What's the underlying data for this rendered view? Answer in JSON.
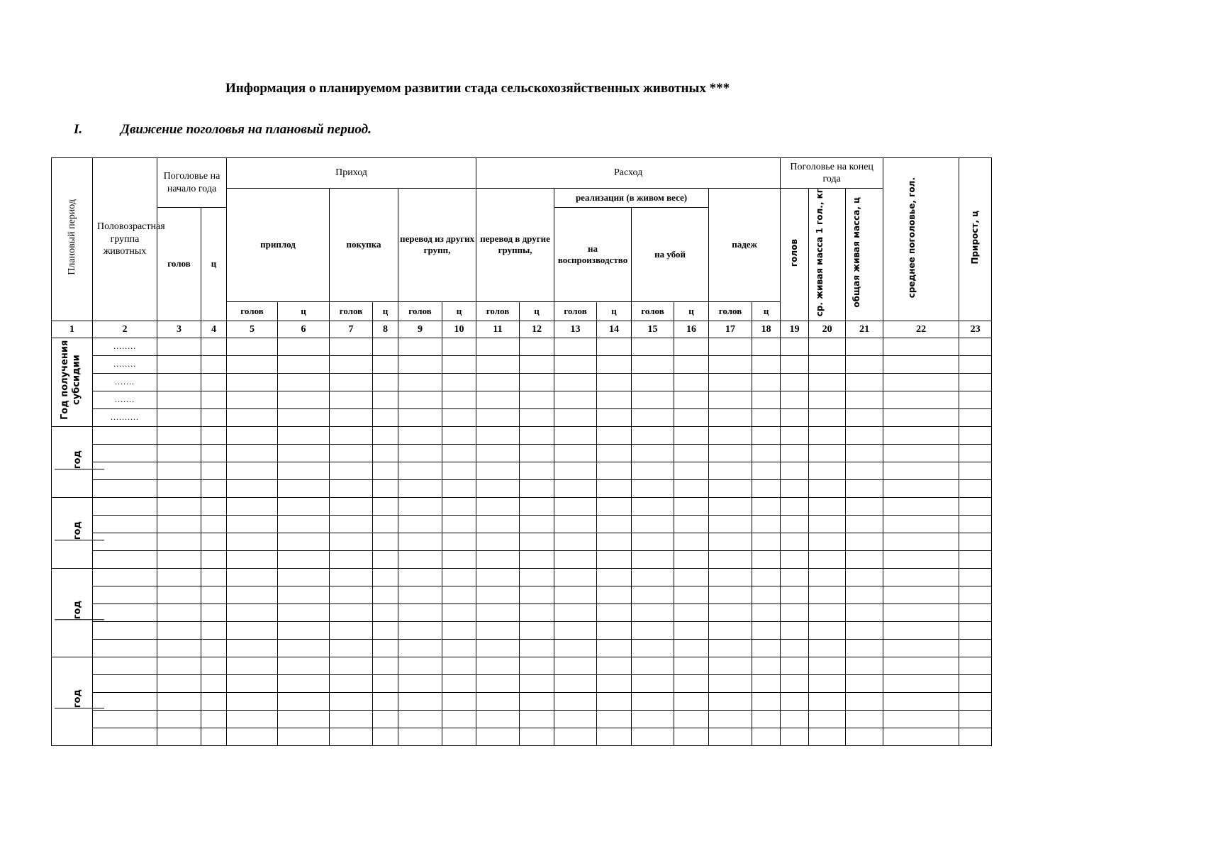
{
  "title": "Информация о планируемом развитии стада  сельскохозяйственных животных ***",
  "section": {
    "number": "I.",
    "title": "Движение поголовья на плановый период."
  },
  "header": {
    "planned_period": "Плановый период",
    "age_group": "Половозрастная группа животных",
    "start_herd": "Поголовье на начало года",
    "income": "Приход",
    "expense": "Расход",
    "end_herd": "Поголовье на конец года",
    "offspring": "приплод",
    "purchase": "покупка",
    "transfer_from": "перевод из других групп,",
    "transfer_to": "перевод в другие группы,",
    "sale": "реализация (в живом весе)",
    "reproduction": "на воспроизводство",
    "slaughter": "на убой",
    "death": "падеж",
    "heads": "голов",
    "centners": "ц",
    "avg_live_weight": "ср. живая масса 1 гол., кг",
    "total_live_weight": "общая живая масса, ц",
    "avg_herd": "среднее поголовье, гол.",
    "gain": "Прирост, ц"
  },
  "column_numbers": [
    "1",
    "2",
    "3",
    "4",
    "5",
    "6",
    "7",
    "8",
    "9",
    "10",
    "11",
    "12",
    "13",
    "14",
    "15",
    "16",
    "17",
    "18",
    "19",
    "20",
    "21",
    "22",
    "23"
  ],
  "groups": [
    {
      "label": "Год получения субсидии",
      "rows": 5,
      "placeholders": [
        "........",
        "........",
        ".......",
        ".......",
        ".........."
      ]
    },
    {
      "label": "год",
      "rows": 4,
      "placeholders": []
    },
    {
      "label": "год",
      "rows": 4,
      "placeholders": []
    },
    {
      "label": "год",
      "rows": 5,
      "placeholders": []
    },
    {
      "label": "год",
      "rows": 5,
      "placeholders": []
    }
  ]
}
